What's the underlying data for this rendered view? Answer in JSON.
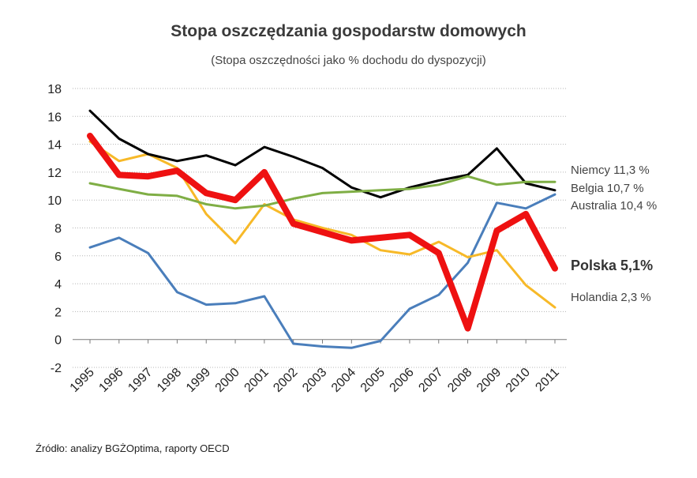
{
  "chart_data": {
    "type": "line",
    "title": "Stopa oszczędzania gospodarstw domowych",
    "subtitle": "(Stopa oszczędności jako % dochodu do dyspozycji)",
    "source": "Źródło: analizy BGŻOptima, raporty OECD",
    "xlabel": "",
    "ylabel": "",
    "ylim": [
      -2,
      18
    ],
    "yticks": [
      "-2",
      "0",
      "2",
      "4",
      "6",
      "8",
      "10",
      "12",
      "14",
      "16",
      "18"
    ],
    "grid": "horizontal dotted",
    "legend": "line end labels on right",
    "categories": [
      "1995",
      "1996",
      "1997",
      "1998",
      "1999",
      "2000",
      "2001",
      "2002",
      "2003",
      "2004",
      "2005",
      "2006",
      "2007",
      "2008",
      "2009",
      "2010",
      "2011"
    ],
    "series": [
      {
        "name": "Australia",
        "value_label": "10,4 %",
        "color": "#4a7ebb",
        "values": [
          6.6,
          7.3,
          6.2,
          3.4,
          2.5,
          2.6,
          3.1,
          -0.3,
          -0.5,
          -0.6,
          -0.1,
          2.2,
          3.2,
          5.5,
          9.8,
          9.4,
          10.4
        ]
      },
      {
        "name": "Holandia",
        "value_label": "2,3 %",
        "color": "#f7b928",
        "values": [
          14.2,
          12.8,
          13.3,
          12.3,
          9.0,
          6.9,
          9.7,
          8.6,
          8.0,
          7.5,
          6.4,
          6.1,
          7.0,
          5.9,
          6.4,
          3.9,
          2.3
        ]
      },
      {
        "name": "Belgia",
        "value_label": "10,7 %",
        "color": "#000000",
        "values": [
          16.4,
          14.4,
          13.3,
          12.8,
          13.2,
          12.5,
          13.8,
          13.1,
          12.3,
          10.9,
          10.2,
          10.9,
          11.4,
          11.8,
          13.7,
          11.2,
          10.7
        ]
      },
      {
        "name": "Niemcy",
        "value_label": "11,3 %",
        "color": "#7fae45",
        "values": [
          11.2,
          10.8,
          10.4,
          10.3,
          9.7,
          9.4,
          9.6,
          10.1,
          10.5,
          10.6,
          10.7,
          10.8,
          11.1,
          11.7,
          11.1,
          11.3,
          11.3
        ]
      },
      {
        "name": "Polska",
        "value_label": "5,1%",
        "color": "#ee1111",
        "highlight": true,
        "values": [
          14.6,
          11.8,
          11.7,
          12.1,
          10.5,
          10.0,
          12.0,
          8.3,
          7.7,
          7.1,
          7.3,
          7.5,
          6.2,
          0.8,
          7.8,
          9.0,
          5.1
        ]
      }
    ]
  }
}
